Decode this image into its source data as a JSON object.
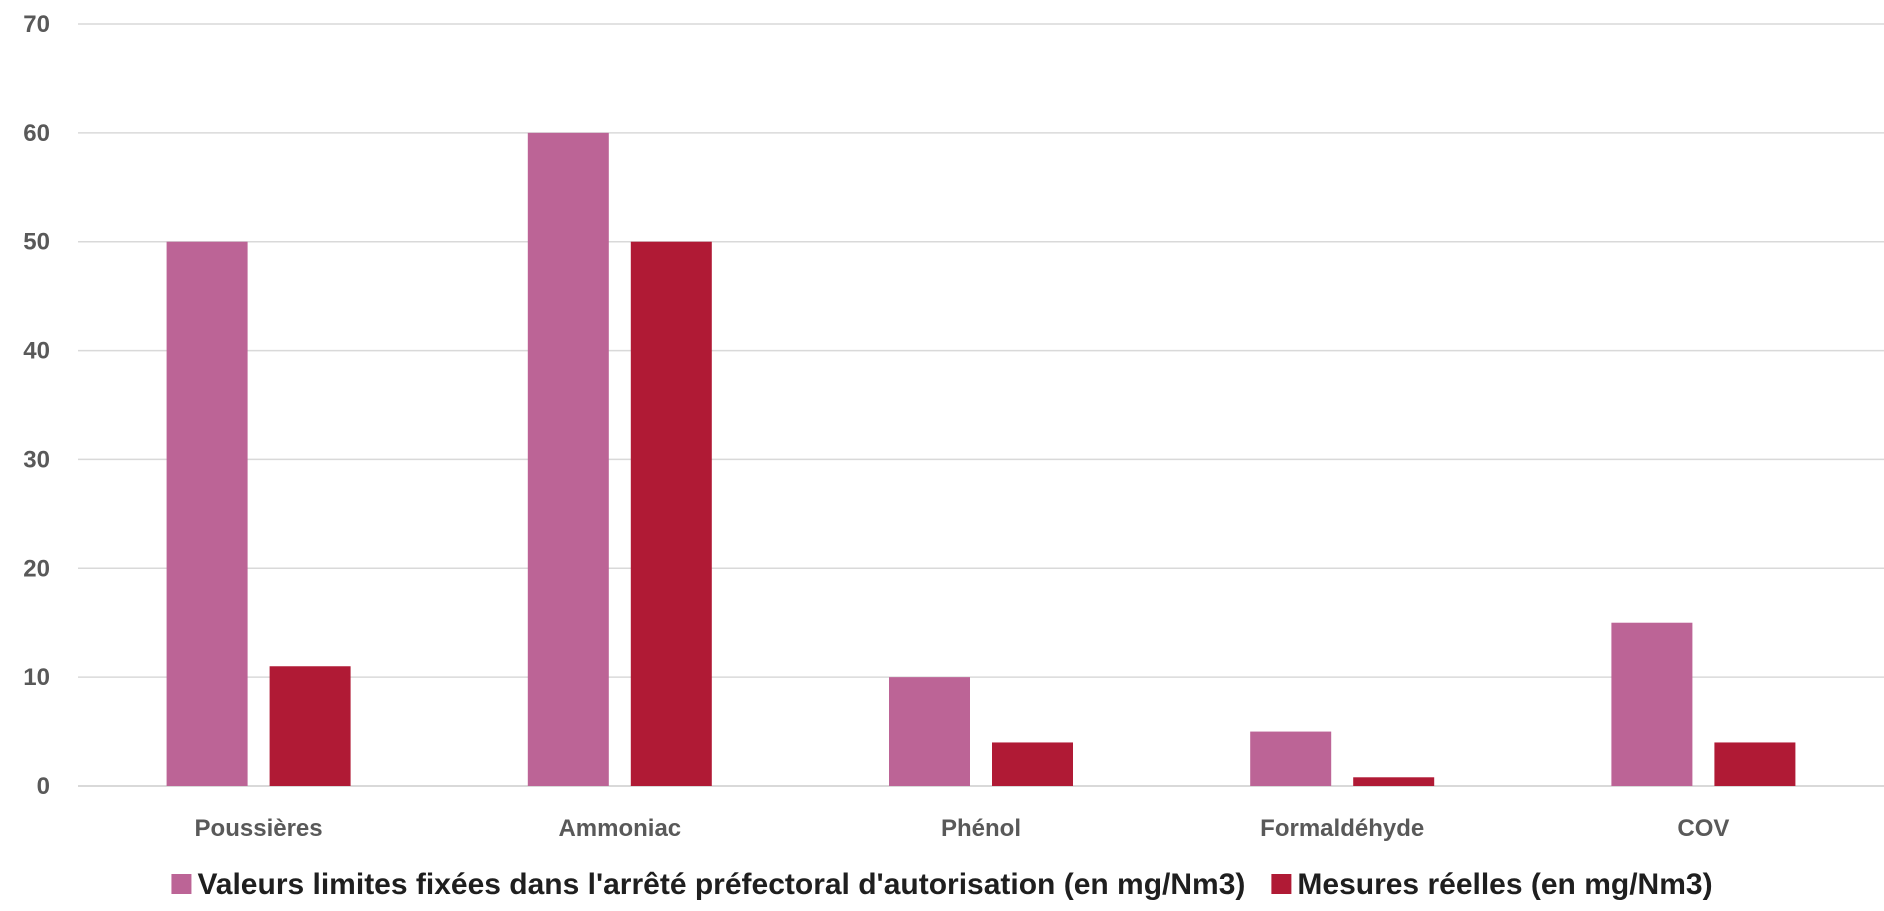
{
  "chart_data": {
    "type": "bar",
    "title": "",
    "xlabel": "",
    "ylabel": "",
    "categories": [
      "Poussières",
      "Ammoniac",
      "Phénol",
      "Formaldéhyde",
      "COV"
    ],
    "series": [
      {
        "name": "Valeurs limites fixées dans l'arrêté préfectoral d'autorisation (en mg/Nm3)",
        "color": "#bc6496",
        "values": [
          50,
          60,
          10,
          5,
          15
        ]
      },
      {
        "name": "Mesures réelles (en mg/Nm3)",
        "color": "#b01a35",
        "values": [
          11,
          50,
          4,
          0.8,
          4
        ]
      }
    ],
    "ylim": [
      0,
      70
    ],
    "yticks": [
      0,
      10,
      20,
      30,
      40,
      50,
      60,
      70
    ],
    "grid": true,
    "legend": "bottom"
  }
}
